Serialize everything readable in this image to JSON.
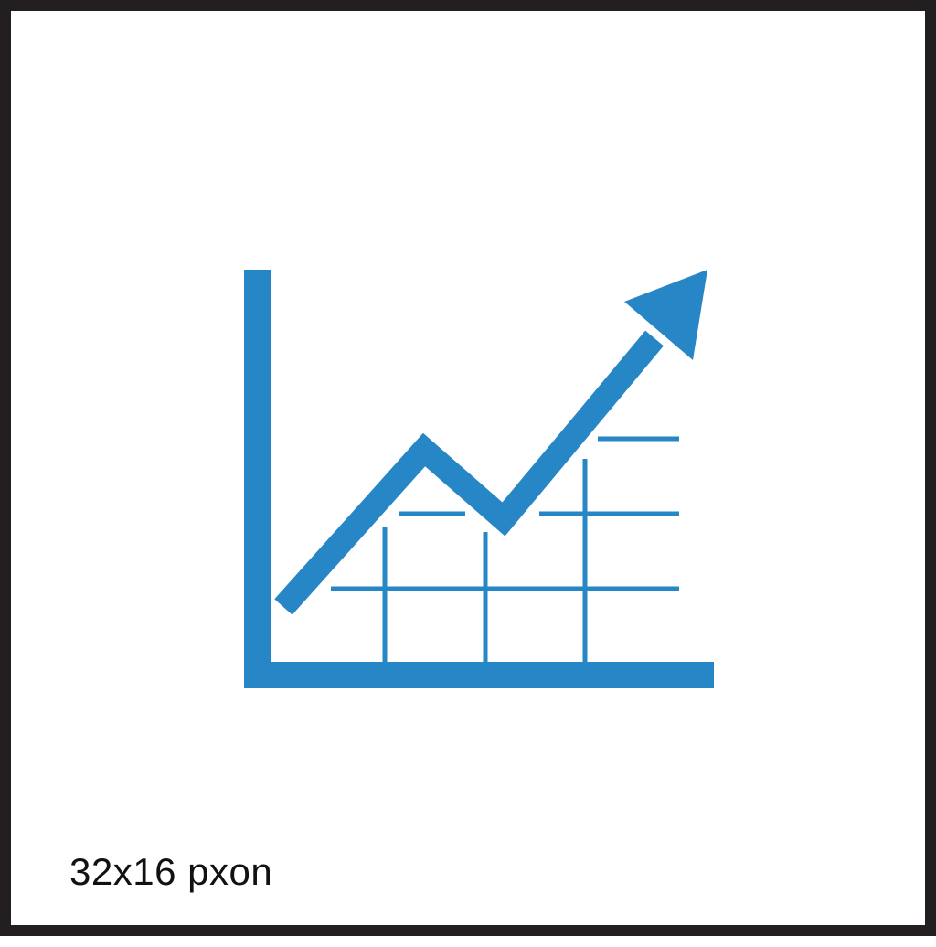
{
  "icon": {
    "name": "growth-chart-icon",
    "color": "#2686c6"
  },
  "caption": {
    "text": "32x16 pxon"
  },
  "frame": {
    "border_color": "#231f20"
  }
}
